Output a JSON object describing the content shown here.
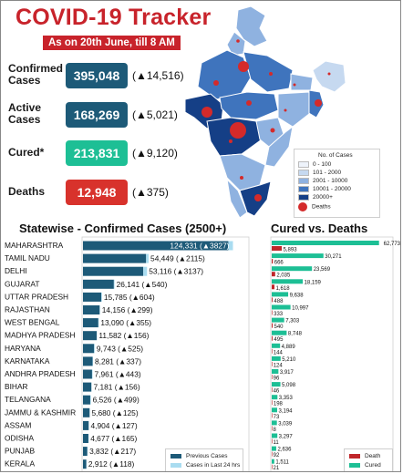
{
  "header": {
    "title": "COVID-19 Tracker",
    "subtitle": "As on 20th June, till 8 AM"
  },
  "stats": [
    {
      "label": "Confirmed Cases",
      "value": "395,048",
      "delta": "(▲14,516)",
      "color": "#1d5a78"
    },
    {
      "label": "Active Cases",
      "value": "168,269",
      "delta": "(▲5,021)",
      "color": "#1d5a78"
    },
    {
      "label": "Cured*",
      "value": "213,831",
      "delta": "(▲9,120)",
      "color": "#1dbf95"
    },
    {
      "label": "Deaths",
      "value": "12,948",
      "delta": "(▲375)",
      "color": "#d8322c"
    }
  ],
  "map_legend": {
    "title": "No. of Cases",
    "bins": [
      {
        "label": "0 - 100",
        "color": "#eef3fb"
      },
      {
        "label": "101 - 2000",
        "color": "#c6d9f0"
      },
      {
        "label": "2001 - 10000",
        "color": "#8fb2e0"
      },
      {
        "label": "10001 - 20000",
        "color": "#3f74bd"
      },
      {
        "label": "20000+",
        "color": "#153f86"
      }
    ],
    "deaths_label": "Deaths",
    "deaths_color": "#d42a2a"
  },
  "chart_data": [
    {
      "type": "bar",
      "title": "Statewise - Confirmed Cases (2500+)",
      "orientation": "horizontal",
      "stacked": true,
      "categories": [
        "MAHARASHTRA",
        "TAMIL NADU",
        "DELHI",
        "GUJARAT",
        "UTTAR PRADESH",
        "RAJASTHAN",
        "WEST BENGAL",
        "MADHYA PRADESH",
        "HARYANA",
        "KARNATAKA",
        "ANDHRA PRADESH",
        "BIHAR",
        "TELANGANA",
        "JAMMU & KASHMIR",
        "ASSAM",
        "ODISHA",
        "PUNJAB",
        "KERALA"
      ],
      "series": [
        {
          "name": "Previous Cases",
          "color": "#1d5a78",
          "values": [
            120504,
            52334,
            49979,
            25601,
            15181,
            13857,
            12735,
            11426,
            9218,
            7944,
            7518,
            7025,
            6027,
            5555,
            4777,
            4512,
            3615,
            2794
          ]
        },
        {
          "name": "Cases in Last 24 hrs",
          "color": "#a9dcf0",
          "values": [
            3827,
            2115,
            3137,
            540,
            604,
            299,
            355,
            156,
            525,
            337,
            443,
            156,
            499,
            125,
            127,
            165,
            217,
            118
          ]
        }
      ],
      "labels": [
        "124,331 (▲3827)",
        "54,449 (▲2115)",
        "53,116 (▲3137)",
        "26,141 (▲540)",
        "15,785 (▲604)",
        "14,156 (▲299)",
        "13,090 (▲355)",
        "11,582 (▲156)",
        "9,743 (▲525)",
        "8,281 (▲337)",
        "7,961 (▲443)",
        "7,181 (▲156)",
        "6,526 (▲499)",
        "5,680 (▲125)",
        "4,904 (▲127)",
        "4,677 (▲165)",
        "3,832 (▲217)",
        "2,912 (▲118)"
      ],
      "xlim": [
        0,
        130000
      ],
      "legend": "bottom-right"
    },
    {
      "type": "bar",
      "title": "Cured vs. Deaths",
      "orientation": "horizontal",
      "categories": [
        "MAHARASHTRA",
        "TAMIL NADU",
        "DELHI",
        "GUJARAT",
        "UTTAR PRADESH",
        "RAJASTHAN",
        "WEST BENGAL",
        "MADHYA PRADESH",
        "HARYANA",
        "KARNATAKA",
        "ANDHRA PRADESH",
        "BIHAR",
        "TELANGANA",
        "JAMMU & KASHMIR",
        "ASSAM",
        "ODISHA",
        "PUNJAB",
        "KERALA"
      ],
      "series": [
        {
          "name": "Cured",
          "color": "#1dbf95",
          "values": [
            62773,
            30271,
            23569,
            18159,
            9638,
            10997,
            7303,
            8748,
            4889,
            5210,
            3917,
            5098,
            3353,
            3194,
            3039,
            3297,
            2636,
            1511
          ]
        },
        {
          "name": "Death",
          "color": "#c0262a",
          "values": [
            5893,
            666,
            2035,
            1618,
            488,
            333,
            540,
            495,
            144,
            124,
            96,
            46,
            198,
            73,
            8,
            11,
            92,
            21
          ]
        }
      ],
      "series_labels": {
        "Cured": [
          "62,773",
          "30,271",
          "23,569",
          "18,159",
          "9,638",
          "10,997",
          "7,303",
          "8,748",
          "4,889",
          "5,210",
          "3,917",
          "5,098",
          "3,353",
          "3,194",
          "3,039",
          "3,297",
          "2,636",
          "1,511"
        ],
        "Death": [
          "5,893",
          "666",
          "2,035",
          "1,618",
          "488",
          "333",
          "540",
          "495",
          "144",
          "124",
          "96",
          "46",
          "198",
          "73",
          "8",
          "11",
          "92",
          "21"
        ]
      },
      "xlim": [
        0,
        64000
      ],
      "legend": "bottom-right"
    }
  ]
}
